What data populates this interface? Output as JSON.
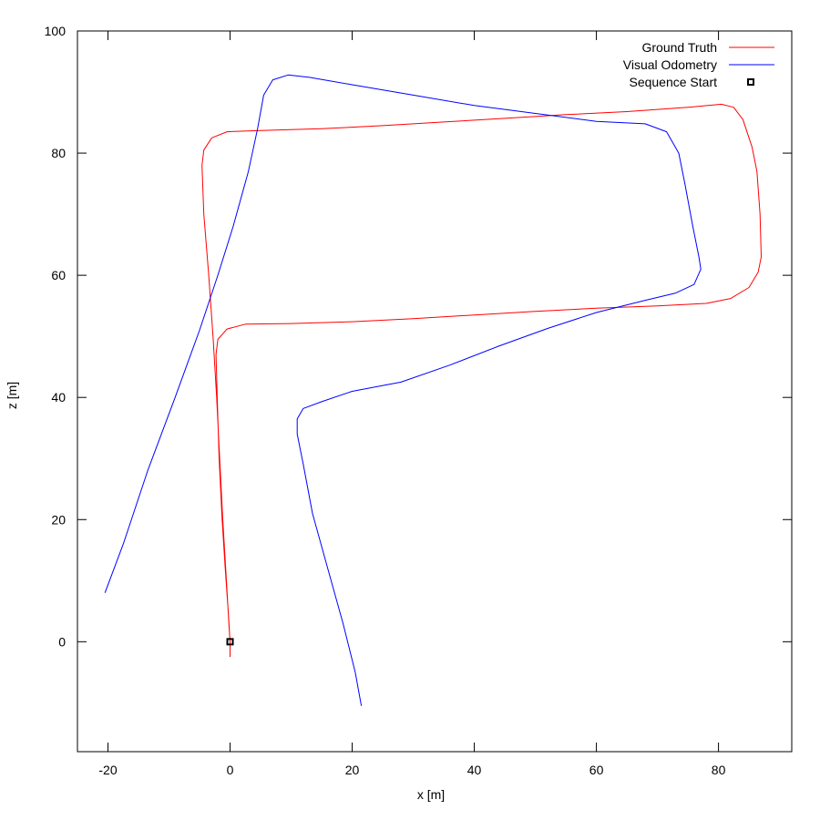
{
  "chart_data": {
    "type": "line",
    "xlabel": "x [m]",
    "ylabel": "z [m]",
    "xlim": [
      -25,
      92
    ],
    "ylim": [
      -18,
      100
    ],
    "x_ticks": [
      -20,
      0,
      20,
      40,
      60,
      80
    ],
    "y_ticks": [
      0,
      20,
      40,
      60,
      80,
      100
    ],
    "grid": false,
    "legend_position": "top-right",
    "series": [
      {
        "name": "Ground Truth",
        "color": "#ff0000",
        "points": [
          [
            0,
            -2.5
          ],
          [
            0,
            0
          ],
          [
            -0.3,
            5
          ],
          [
            -0.8,
            12
          ],
          [
            -1.3,
            20
          ],
          [
            -1.8,
            30
          ],
          [
            -2.1,
            40
          ],
          [
            -2.3,
            47
          ],
          [
            -2,
            49.5
          ],
          [
            -0.5,
            51.2
          ],
          [
            2.5,
            52
          ],
          [
            10,
            52.1
          ],
          [
            20,
            52.4
          ],
          [
            30,
            52.9
          ],
          [
            40,
            53.5
          ],
          [
            50,
            54.1
          ],
          [
            60,
            54.6
          ],
          [
            70,
            55
          ],
          [
            78,
            55.4
          ],
          [
            82,
            56.2
          ],
          [
            85,
            58
          ],
          [
            86.5,
            60.5
          ],
          [
            87,
            63
          ],
          [
            86.8,
            70
          ],
          [
            86.3,
            77
          ],
          [
            85.5,
            81
          ],
          [
            84,
            85.5
          ],
          [
            82.5,
            87.5
          ],
          [
            80.5,
            88
          ],
          [
            75,
            87.5
          ],
          [
            65,
            86.8
          ],
          [
            55,
            86.3
          ],
          [
            45,
            85.7
          ],
          [
            35,
            85.1
          ],
          [
            25,
            84.5
          ],
          [
            15,
            84
          ],
          [
            5,
            83.7
          ],
          [
            -0.5,
            83.5
          ],
          [
            -3,
            82.5
          ],
          [
            -4.3,
            80.5
          ],
          [
            -4.6,
            78
          ],
          [
            -4.3,
            70
          ],
          [
            -3.5,
            60
          ],
          [
            -2.8,
            50
          ],
          [
            -2.2,
            40
          ],
          [
            -1.7,
            30
          ],
          [
            -1.2,
            20
          ],
          [
            -0.6,
            10
          ],
          [
            -0.2,
            3
          ],
          [
            0,
            0
          ]
        ]
      },
      {
        "name": "Visual Odometry",
        "color": "#0000ff",
        "points": [
          [
            -20.5,
            8
          ],
          [
            -17.5,
            16
          ],
          [
            -13.5,
            28
          ],
          [
            -9,
            40
          ],
          [
            -5,
            51
          ],
          [
            -2,
            60
          ],
          [
            0.5,
            68
          ],
          [
            3,
            77
          ],
          [
            4.5,
            84
          ],
          [
            5.5,
            89.5
          ],
          [
            7,
            92
          ],
          [
            9.5,
            92.8
          ],
          [
            13,
            92.4
          ],
          [
            20,
            91.2
          ],
          [
            30,
            89.5
          ],
          [
            40,
            87.8
          ],
          [
            50,
            86.5
          ],
          [
            60,
            85.2
          ],
          [
            68,
            84.8
          ],
          [
            71.5,
            83.5
          ],
          [
            73.5,
            80
          ],
          [
            74.5,
            75
          ],
          [
            75.8,
            68
          ],
          [
            76.8,
            63
          ],
          [
            77.1,
            61
          ],
          [
            76,
            58.5
          ],
          [
            73,
            57.1
          ],
          [
            68,
            55.9
          ],
          [
            60,
            53.9
          ],
          [
            52,
            51.3
          ],
          [
            44,
            48.4
          ],
          [
            36,
            45.3
          ],
          [
            28,
            42.5
          ],
          [
            20,
            41
          ],
          [
            15,
            39.3
          ],
          [
            12,
            38.2
          ],
          [
            11,
            36.5
          ],
          [
            11,
            34
          ],
          [
            12,
            29
          ],
          [
            13.5,
            21
          ],
          [
            16,
            12
          ],
          [
            18.5,
            3
          ],
          [
            20.5,
            -5
          ],
          [
            21.5,
            -10.5
          ]
        ]
      }
    ],
    "markers": [
      {
        "name": "Sequence Start",
        "x": 0,
        "y": 0,
        "shape": "square"
      }
    ]
  }
}
